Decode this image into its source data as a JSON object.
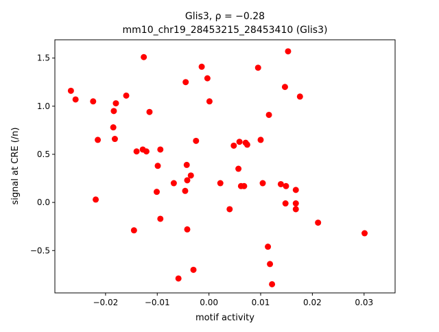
{
  "chart_data": {
    "type": "scatter",
    "title_line1": "Glis3, ρ = −0.28",
    "title_line2": "mm10_chr19_28453215_28453410 (Glis3)",
    "xlabel": "motif activity",
    "ylabel": "signal at CRE (/n)",
    "xlim": [
      -0.0298,
      0.036
    ],
    "ylim": [
      -0.94,
      1.69
    ],
    "x_ticks": [
      -0.02,
      -0.01,
      0.0,
      0.01,
      0.02,
      0.03
    ],
    "x_tick_labels": [
      "−0.02",
      "−0.01",
      "0.00",
      "0.01",
      "0.02",
      "0.03"
    ],
    "y_ticks": [
      -0.5,
      0.0,
      0.5,
      1.0,
      1.5
    ],
    "y_tick_labels": [
      "−0.5",
      "0.0",
      "0.5",
      "1.0",
      "1.5"
    ],
    "grid": false,
    "legend": false,
    "marker_color": "#ff0000",
    "points": [
      {
        "x": -0.0267,
        "y": 1.16
      },
      {
        "x": -0.0258,
        "y": 1.07
      },
      {
        "x": -0.0224,
        "y": 1.05
      },
      {
        "x": -0.0219,
        "y": 0.03
      },
      {
        "x": -0.0215,
        "y": 0.65
      },
      {
        "x": -0.0185,
        "y": 0.78
      },
      {
        "x": -0.0184,
        "y": 0.95
      },
      {
        "x": -0.0182,
        "y": 0.66
      },
      {
        "x": -0.018,
        "y": 1.03
      },
      {
        "x": -0.016,
        "y": 1.11
      },
      {
        "x": -0.0145,
        "y": -0.29
      },
      {
        "x": -0.014,
        "y": 0.53
      },
      {
        "x": -0.0128,
        "y": 0.55
      },
      {
        "x": -0.0126,
        "y": 1.51
      },
      {
        "x": -0.0121,
        "y": 0.53
      },
      {
        "x": -0.0115,
        "y": 0.94
      },
      {
        "x": -0.0101,
        "y": 0.11
      },
      {
        "x": -0.0099,
        "y": 0.38
      },
      {
        "x": -0.0094,
        "y": 0.55
      },
      {
        "x": -0.0094,
        "y": -0.17
      },
      {
        "x": -0.0068,
        "y": 0.2
      },
      {
        "x": -0.0059,
        "y": -0.79
      },
      {
        "x": -0.0046,
        "y": 0.12
      },
      {
        "x": -0.0045,
        "y": 1.25
      },
      {
        "x": -0.0043,
        "y": 0.39
      },
      {
        "x": -0.0042,
        "y": 0.23
      },
      {
        "x": -0.0042,
        "y": -0.28
      },
      {
        "x": -0.0035,
        "y": 0.28
      },
      {
        "x": -0.003,
        "y": -0.7
      },
      {
        "x": -0.0025,
        "y": 0.64
      },
      {
        "x": -0.0014,
        "y": 1.41
      },
      {
        "x": -0.0003,
        "y": 1.29
      },
      {
        "x": 0.0001,
        "y": 1.05
      },
      {
        "x": 0.0022,
        "y": 0.2
      },
      {
        "x": 0.004,
        "y": -0.07
      },
      {
        "x": 0.0048,
        "y": 0.59
      },
      {
        "x": 0.0057,
        "y": 0.35
      },
      {
        "x": 0.0059,
        "y": 0.63
      },
      {
        "x": 0.0062,
        "y": 0.17
      },
      {
        "x": 0.0068,
        "y": 0.17
      },
      {
        "x": 0.0071,
        "y": 0.62
      },
      {
        "x": 0.0074,
        "y": 0.6
      },
      {
        "x": 0.0095,
        "y": 1.4
      },
      {
        "x": 0.01,
        "y": 0.65
      },
      {
        "x": 0.0104,
        "y": 0.2
      },
      {
        "x": 0.0114,
        "y": -0.46
      },
      {
        "x": 0.0116,
        "y": 0.91
      },
      {
        "x": 0.0118,
        "y": -0.64
      },
      {
        "x": 0.0122,
        "y": -0.85
      },
      {
        "x": 0.0139,
        "y": 0.19
      },
      {
        "x": 0.0147,
        "y": 1.2
      },
      {
        "x": 0.0148,
        "y": -0.01
      },
      {
        "x": 0.0149,
        "y": 0.17
      },
      {
        "x": 0.0153,
        "y": 1.57
      },
      {
        "x": 0.0168,
        "y": 0.13
      },
      {
        "x": 0.0168,
        "y": -0.01
      },
      {
        "x": 0.0168,
        "y": -0.07
      },
      {
        "x": 0.0176,
        "y": 1.1
      },
      {
        "x": 0.0211,
        "y": -0.21
      },
      {
        "x": 0.0301,
        "y": -0.32
      }
    ]
  }
}
